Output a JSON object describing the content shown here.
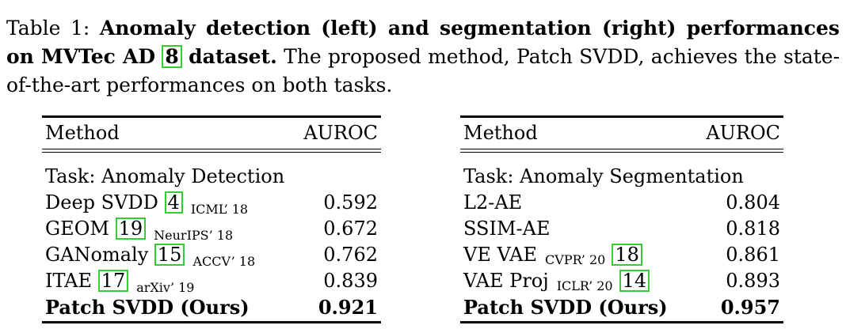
{
  "caption": {
    "label": "Table 1:",
    "bold_text": "Anomaly detection (left) and segmentation (right) performances on MVTec AD",
    "bold_cite": "8",
    "bold_text_end": "dataset.",
    "rest": "The proposed method, Patch SVDD, achieves the state-of-the-art performances on both tasks."
  },
  "left_table": {
    "header": {
      "method": "Method",
      "metric": "AUROC"
    },
    "task": "Task: Anomaly Detection",
    "rows": [
      {
        "name": "Deep SVDD",
        "cite": "4",
        "venue": "ICML’ 18",
        "value": "0.592"
      },
      {
        "name": "GEOM",
        "cite": "19",
        "venue": "NeurIPS’ 18",
        "value": "0.672"
      },
      {
        "name": "GANomaly",
        "cite": "15",
        "venue": "ACCV’ 18",
        "value": "0.762"
      },
      {
        "name": "ITAE",
        "cite": "17",
        "venue": "arXiv’ 19",
        "value": "0.839"
      }
    ],
    "ours": {
      "name": "Patch SVDD (Ours)",
      "value": "0.921"
    }
  },
  "right_table": {
    "header": {
      "method": "Method",
      "metric": "AUROC"
    },
    "task": "Task: Anomaly Segmentation",
    "rows": [
      {
        "name": "L2-AE",
        "value": "0.804"
      },
      {
        "name": "SSIM-AE",
        "value": "0.818"
      },
      {
        "name": "VE VAE",
        "venue": "CVPR’ 20",
        "cite": "18",
        "value": "0.861"
      },
      {
        "name": "VAE Proj",
        "venue": "ICLR’ 20",
        "cite": "14",
        "value": "0.893"
      }
    ],
    "ours": {
      "name": "Patch SVDD (Ours)",
      "value": "0.957"
    }
  }
}
